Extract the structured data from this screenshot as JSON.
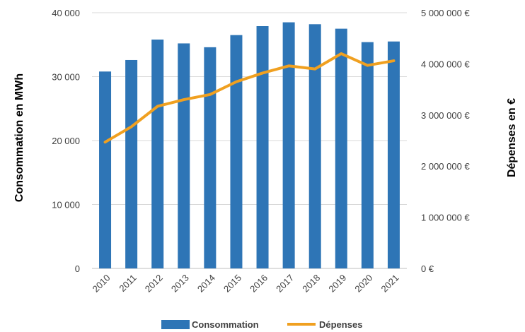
{
  "chart_data": {
    "type": "bar",
    "categories": [
      "2010",
      "2011",
      "2012",
      "2013",
      "2014",
      "2015",
      "2016",
      "2017",
      "2018",
      "2019",
      "2020",
      "2021"
    ],
    "series": [
      {
        "name": "Consommation",
        "type": "bar",
        "axis": "left",
        "color": "#2E75B6",
        "values": [
          30800,
          32600,
          35800,
          35200,
          34600,
          36500,
          37900,
          38500,
          38200,
          37500,
          35400,
          35500
        ]
      },
      {
        "name": "Dépenses",
        "type": "line",
        "axis": "right",
        "color": "#F0A020",
        "values": [
          2470000,
          2770000,
          3170000,
          3300000,
          3400000,
          3650000,
          3820000,
          3960000,
          3900000,
          4200000,
          3970000,
          4060000
        ]
      }
    ],
    "ylabel": "Consommation en MWh",
    "y2label": "Dépenses en €",
    "ylim": [
      0,
      40000
    ],
    "y2lim": [
      0,
      5000000
    ],
    "yticks": [
      "0",
      "10 000",
      "20 000",
      "30 000",
      "40 000"
    ],
    "y2ticks": [
      "0 €",
      "1 000 000 €",
      "2 000 000 €",
      "3 000 000 €",
      "4 000 000 €",
      "5 000 000 €"
    ],
    "grid": true,
    "legend": "bottom"
  }
}
